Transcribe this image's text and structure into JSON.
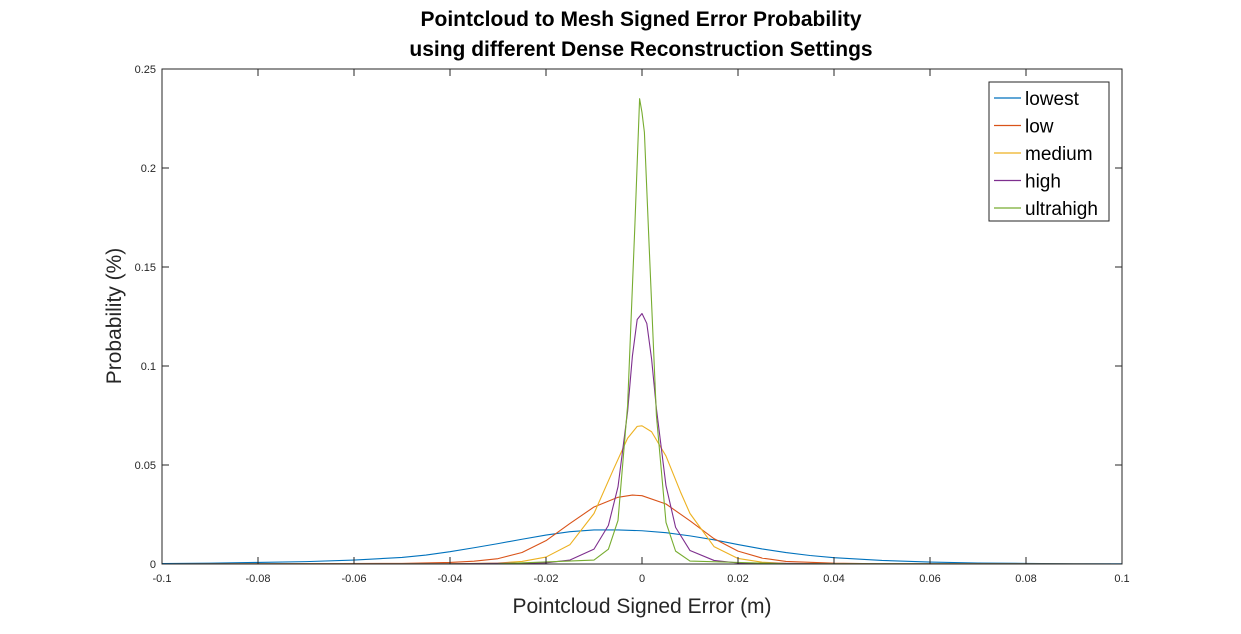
{
  "chart_data": {
    "type": "line",
    "title": [
      "Pointcloud to Mesh Signed Error Probability",
      "using different Dense Reconstruction Settings"
    ],
    "xlabel": "Pointcloud Signed Error (m)",
    "ylabel": "Probability (%)",
    "xlim": [
      -0.1,
      0.1
    ],
    "ylim": [
      0,
      0.25
    ],
    "xticks": [
      -0.1,
      -0.08,
      -0.06,
      -0.04,
      -0.02,
      0,
      0.02,
      0.04,
      0.06,
      0.08,
      0.1
    ],
    "xtick_labels": [
      "-0.1",
      "-0.08",
      "-0.06",
      "-0.04",
      "-0.02",
      "0",
      "0.02",
      "0.04",
      "0.06",
      "0.08",
      "0.1"
    ],
    "yticks": [
      0,
      0.05,
      0.1,
      0.15,
      0.2,
      0.25
    ],
    "ytick_labels": [
      "0",
      "0.05",
      "0.1",
      "0.15",
      "0.2",
      "0.25"
    ],
    "grid": false,
    "legend_position": "top-right",
    "series": [
      {
        "name": "lowest",
        "color": "#0072BD",
        "x": [
          -0.1,
          -0.09,
          -0.08,
          -0.07,
          -0.06,
          -0.05,
          -0.045,
          -0.04,
          -0.035,
          -0.03,
          -0.025,
          -0.02,
          -0.015,
          -0.01,
          -0.005,
          0,
          0.005,
          0.01,
          0.015,
          0.02,
          0.025,
          0.03,
          0.035,
          0.04,
          0.05,
          0.06,
          0.07,
          0.08,
          0.09,
          0.1
        ],
        "y": [
          0.0002,
          0.0004,
          0.0008,
          0.0012,
          0.002,
          0.0033,
          0.0045,
          0.0062,
          0.0082,
          0.0103,
          0.0125,
          0.0146,
          0.0163,
          0.0172,
          0.0172,
          0.0168,
          0.0158,
          0.0142,
          0.0122,
          0.0098,
          0.0076,
          0.0058,
          0.0043,
          0.0032,
          0.0018,
          0.001,
          0.0005,
          0.0003,
          0.0001,
          0.0001
        ]
      },
      {
        "name": "low",
        "color": "#D95319",
        "x": [
          -0.1,
          -0.05,
          -0.04,
          -0.035,
          -0.03,
          -0.025,
          -0.02,
          -0.015,
          -0.01,
          -0.005,
          -0.002,
          0,
          0.005,
          0.01,
          0.015,
          0.02,
          0.025,
          0.03,
          0.04,
          0.05,
          0.1
        ],
        "y": [
          0,
          0.0003,
          0.0008,
          0.0014,
          0.0027,
          0.0058,
          0.0118,
          0.0205,
          0.0288,
          0.0337,
          0.0348,
          0.0345,
          0.0303,
          0.0218,
          0.0128,
          0.0065,
          0.003,
          0.0013,
          0.0004,
          0.0001,
          0
        ]
      },
      {
        "name": "medium",
        "color": "#EDB120",
        "x": [
          -0.1,
          -0.04,
          -0.03,
          -0.025,
          -0.02,
          -0.015,
          -0.01,
          -0.006,
          -0.003,
          -0.001,
          0,
          0.002,
          0.005,
          0.008,
          0.01,
          0.015,
          0.02,
          0.025,
          0.03,
          0.04,
          0.1
        ],
        "y": [
          0,
          0.0001,
          0.0005,
          0.0013,
          0.0035,
          0.0098,
          0.0255,
          0.0475,
          0.0635,
          0.0695,
          0.0698,
          0.0668,
          0.0545,
          0.0365,
          0.0255,
          0.0088,
          0.0028,
          0.0009,
          0.0003,
          0.0001,
          0
        ]
      },
      {
        "name": "high",
        "color": "#7E2F8E",
        "x": [
          -0.1,
          -0.04,
          -0.02,
          -0.015,
          -0.01,
          -0.007,
          -0.005,
          -0.003,
          -0.002,
          -0.001,
          0,
          0.001,
          0.002,
          0.003,
          0.005,
          0.007,
          0.01,
          0.015,
          0.02,
          0.04,
          0.1
        ],
        "y": [
          0,
          0.0001,
          0.0006,
          0.002,
          0.0075,
          0.0195,
          0.039,
          0.077,
          0.105,
          0.1235,
          0.1265,
          0.1215,
          0.1035,
          0.0785,
          0.0395,
          0.0185,
          0.0068,
          0.0018,
          0.0005,
          0.0001,
          0
        ]
      },
      {
        "name": "ultrahigh",
        "color": "#77AC30",
        "x": [
          -0.1,
          -0.03,
          -0.01,
          -0.007,
          -0.005,
          -0.003,
          -0.0015,
          -0.0005,
          0,
          0.0005,
          0.0015,
          0.003,
          0.005,
          0.007,
          0.01,
          0.03,
          0.1
        ],
        "y": [
          0,
          0.0001,
          0.002,
          0.0075,
          0.022,
          0.08,
          0.17,
          0.235,
          0.228,
          0.218,
          0.16,
          0.075,
          0.021,
          0.0065,
          0.0015,
          0.0001,
          0
        ]
      }
    ]
  }
}
